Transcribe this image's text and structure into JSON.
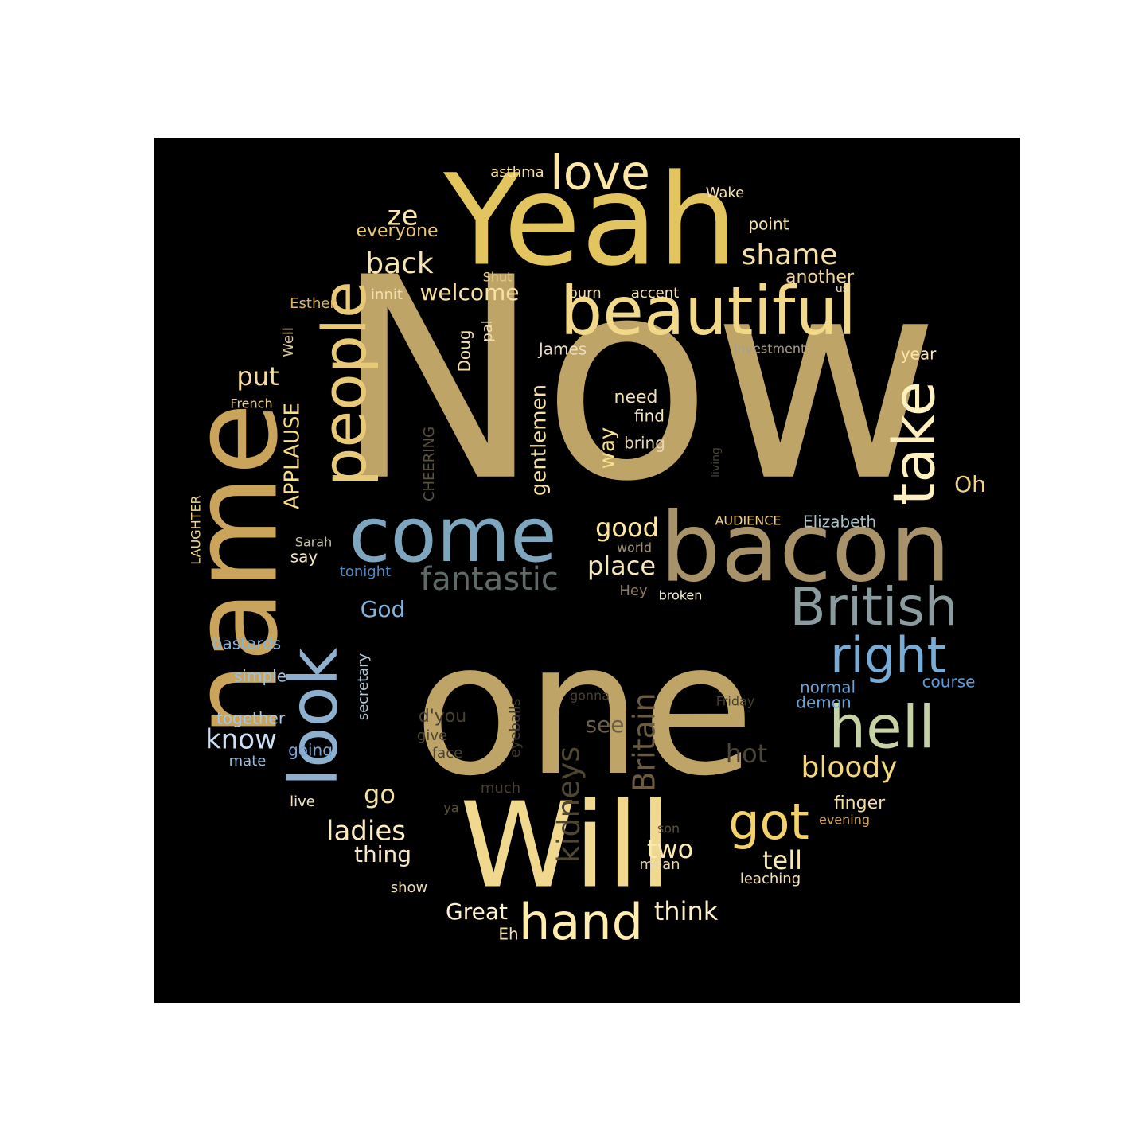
{
  "colors": {
    "background": "#000000",
    "page": "#ffffff"
  },
  "words": [
    {
      "text": "Now",
      "color": "#bfa467"
    },
    {
      "text": "one",
      "color": "#bfa467"
    },
    {
      "text": "Yeah",
      "color": "#e3c55f"
    },
    {
      "text": "name",
      "color": "#c9a45a"
    },
    {
      "text": "Will",
      "color": "#f0d98e"
    },
    {
      "text": "bacon",
      "color": "#a8926a"
    },
    {
      "text": "come",
      "color": "#7fa6bf"
    },
    {
      "text": "beautiful",
      "color": "#f2d98a"
    },
    {
      "text": "people",
      "color": "#e8c977"
    },
    {
      "text": "look",
      "color": "#8db0cf"
    },
    {
      "text": "take",
      "color": "#fff1bf"
    },
    {
      "text": "British",
      "color": "#8a9c9f"
    },
    {
      "text": "hell",
      "color": "#c6d1a5"
    },
    {
      "text": "right",
      "color": "#78acd6"
    },
    {
      "text": "love",
      "color": "#fce7a5"
    },
    {
      "text": "got",
      "color": "#f4d26a"
    },
    {
      "text": "hand",
      "color": "#ffedad"
    },
    {
      "text": "shame",
      "color": "#f7e1a6"
    },
    {
      "text": "back",
      "color": "#f6e3b2"
    },
    {
      "text": "ze",
      "color": "#fde7a8"
    },
    {
      "text": "fantastic",
      "color": "#5e6a68"
    },
    {
      "text": "kidneys",
      "color": "#4f4632"
    },
    {
      "text": "Britain",
      "color": "#6b5a3e"
    },
    {
      "text": "APPLAUSE",
      "color": "#f8dc87"
    },
    {
      "text": "gentlemen",
      "color": "#f7e2a5"
    },
    {
      "text": "bloody",
      "color": "#f3d77d"
    },
    {
      "text": "put",
      "color": "#f5dba0"
    },
    {
      "text": "good",
      "color": "#fde6a0"
    },
    {
      "text": "place",
      "color": "#f8e7b8"
    },
    {
      "text": "welcome",
      "color": "#f6e0a2"
    },
    {
      "text": "ladies",
      "color": "#faecbf"
    },
    {
      "text": "think",
      "color": "#fdf0c6"
    },
    {
      "text": "Great",
      "color": "#fdf1d0"
    },
    {
      "text": "tell",
      "color": "#f8e6b2"
    },
    {
      "text": "two",
      "color": "#fbe9b4"
    },
    {
      "text": "know",
      "color": "#cbe0f5"
    },
    {
      "text": "go",
      "color": "#f4dfa4"
    },
    {
      "text": "hot",
      "color": "#4a4536"
    },
    {
      "text": "see",
      "color": "#6a5f48"
    },
    {
      "text": "God",
      "color": "#84b4dc"
    },
    {
      "text": "thing",
      "color": "#f6e7c6"
    },
    {
      "text": "Oh",
      "color": "#f2d385"
    },
    {
      "text": "way",
      "color": "#f8df8e"
    },
    {
      "text": "everyone",
      "color": "#e9c877"
    },
    {
      "text": "secretary",
      "color": "#b1c7d6"
    },
    {
      "text": "CHEERING",
      "color": "#5a5240"
    },
    {
      "text": "need",
      "color": "#f3e2b6"
    },
    {
      "text": "find",
      "color": "#f6e8c3"
    },
    {
      "text": "bring",
      "color": "#e8d8b0"
    },
    {
      "text": "finger",
      "color": "#f4dfa4"
    },
    {
      "text": "James",
      "color": "#eadcbc"
    },
    {
      "text": "Elizabeth",
      "color": "#a9c3c7"
    },
    {
      "text": "d'you",
      "color": "#4b4030"
    },
    {
      "text": "another",
      "color": "#f1d695"
    },
    {
      "text": "eyeballs",
      "color": "#3f3a30"
    },
    {
      "text": "Doug",
      "color": "#f3dfa9"
    },
    {
      "text": "bastards",
      "color": "#84b4dc"
    },
    {
      "text": "simple",
      "color": "#9cc2e0"
    },
    {
      "text": "together",
      "color": "#a8c8e2"
    },
    {
      "text": "going",
      "color": "#7aa8d4"
    },
    {
      "text": "normal",
      "color": "#6ea3d6"
    },
    {
      "text": "course",
      "color": "#5f9cd8"
    },
    {
      "text": "demon",
      "color": "#6aa5d8"
    },
    {
      "text": "mate",
      "color": "#9bbcd8"
    },
    {
      "text": "tonight",
      "color": "#4f88c6"
    },
    {
      "text": "say",
      "color": "#f4e5c0"
    },
    {
      "text": "point",
      "color": "#f7e3a8"
    },
    {
      "text": "year",
      "color": "#fde6a8"
    },
    {
      "text": "Wake",
      "color": "#f4e2ae"
    },
    {
      "text": "asthma",
      "color": "#f8e2a0"
    },
    {
      "text": "burn",
      "color": "#f1dea8"
    },
    {
      "text": "accent",
      "color": "#f6e4b8"
    },
    {
      "text": "Shut",
      "color": "#e4cd8c"
    },
    {
      "text": "innit",
      "color": "#f2dfb0"
    },
    {
      "text": "Esther",
      "color": "#d9b968"
    },
    {
      "text": "pal",
      "color": "#f0e0b8"
    },
    {
      "text": "Well",
      "color": "#d7c79f"
    },
    {
      "text": "us",
      "color": "#f1e1b3"
    },
    {
      "text": "Investment",
      "color": "#a9a08a"
    },
    {
      "text": "French",
      "color": "#e9cf90"
    },
    {
      "text": "living",
      "color": "#4a4535"
    },
    {
      "text": "AUDIENCE",
      "color": "#f2d177"
    },
    {
      "text": "world",
      "color": "#9f9170"
    },
    {
      "text": "broken",
      "color": "#f8eed2"
    },
    {
      "text": "Hey",
      "color": "#8d7d5c"
    },
    {
      "text": "LAUGHTER",
      "color": "#f1d68c"
    },
    {
      "text": "Sarah",
      "color": "#c9c1a7"
    },
    {
      "text": "Friday",
      "color": "#4a3f2d"
    },
    {
      "text": "gonna",
      "color": "#4a4032"
    },
    {
      "text": "give",
      "color": "#4e4433"
    },
    {
      "text": "face",
      "color": "#4a4236"
    },
    {
      "text": "much",
      "color": "#4a3f30"
    },
    {
      "text": "ya",
      "color": "#5a5038"
    },
    {
      "text": "son",
      "color": "#5a4f3a"
    },
    {
      "text": "mean",
      "color": "#e8d9b0"
    },
    {
      "text": "live",
      "color": "#f3e5c2"
    },
    {
      "text": "show",
      "color": "#ecdcb4"
    },
    {
      "text": "Eh",
      "color": "#f3dfa8"
    },
    {
      "text": "evening",
      "color": "#cfa564"
    },
    {
      "text": "leaching",
      "color": "#f3e2b4"
    }
  ]
}
